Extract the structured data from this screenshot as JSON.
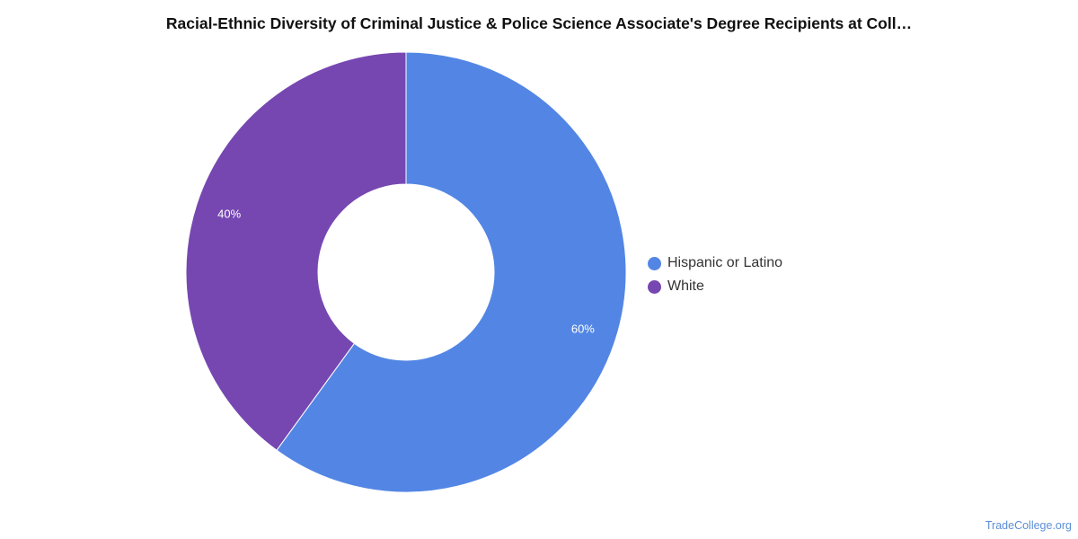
{
  "chart_data": {
    "type": "pie",
    "variant": "donut",
    "title": "Racial-Ethnic Diversity of Criminal Justice & Police Science Associate's Degree Recipients at Coll…",
    "slices": [
      {
        "label": "Hispanic or Latino",
        "value": 60,
        "display": "60%",
        "color": "#5386e4"
      },
      {
        "label": "White",
        "value": 40,
        "display": "40%",
        "color": "#7647b1"
      }
    ],
    "legend_position": "right",
    "start_angle": "top",
    "direction": "clockwise"
  },
  "watermark": "TradeCollege.org"
}
